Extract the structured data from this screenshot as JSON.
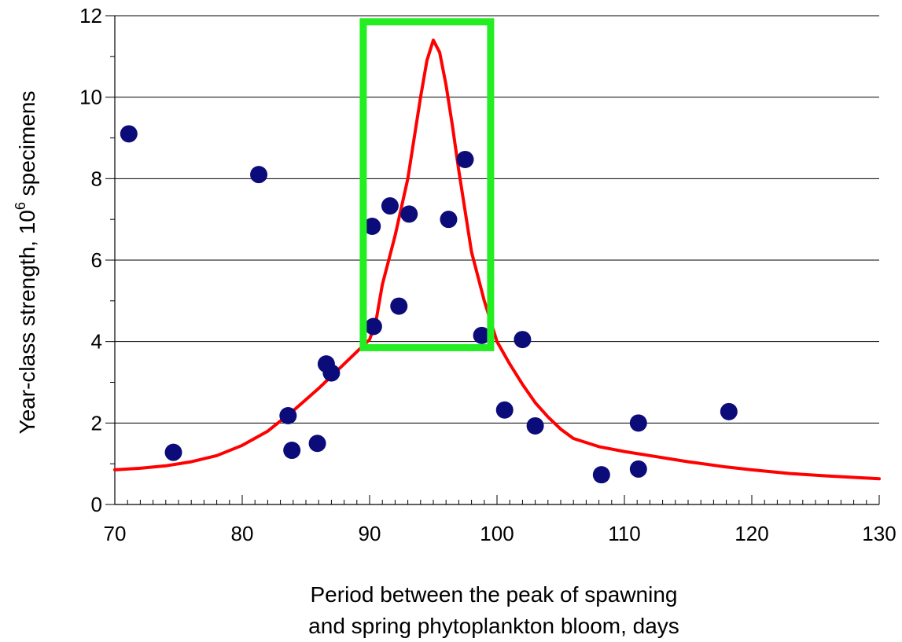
{
  "chart_data": {
    "type": "scatter",
    "xlabel_line1": "Period between the peak of spawning",
    "xlabel_line2": "and spring phytoplankton bloom, days",
    "ylabel_main": "Year-class strength, 10",
    "ylabel_sup": "6",
    "ylabel_tail": " specimens",
    "xlim": [
      70,
      130
    ],
    "ylim": [
      0,
      12
    ],
    "x_ticks": [
      70,
      80,
      90,
      100,
      110,
      120,
      130
    ],
    "y_ticks": [
      0,
      2,
      4,
      6,
      8,
      10,
      12
    ],
    "grid": "horizontal",
    "series": [
      {
        "type": "scatter",
        "color": "#0b0b7a",
        "points": [
          [
            71.1,
            9.1
          ],
          [
            74.6,
            1.28
          ],
          [
            81.3,
            8.1
          ],
          [
            83.6,
            2.18
          ],
          [
            83.9,
            1.33
          ],
          [
            85.9,
            1.5
          ],
          [
            86.6,
            3.45
          ],
          [
            87.0,
            3.23
          ],
          [
            90.2,
            6.83
          ],
          [
            90.3,
            4.37
          ],
          [
            91.6,
            7.33
          ],
          [
            92.3,
            4.87
          ],
          [
            93.1,
            7.13
          ],
          [
            96.2,
            7.0
          ],
          [
            97.5,
            8.47
          ],
          [
            98.8,
            4.15
          ],
          [
            100.6,
            2.32
          ],
          [
            102.0,
            4.05
          ],
          [
            103.0,
            1.93
          ],
          [
            108.2,
            0.73
          ],
          [
            111.1,
            2.0
          ],
          [
            111.1,
            0.87
          ],
          [
            118.2,
            2.28
          ]
        ]
      },
      {
        "type": "line",
        "color": "#ff0000",
        "points": [
          [
            70,
            0.85
          ],
          [
            72,
            0.89
          ],
          [
            74,
            0.95
          ],
          [
            76,
            1.05
          ],
          [
            78,
            1.2
          ],
          [
            80,
            1.45
          ],
          [
            82,
            1.8
          ],
          [
            84,
            2.3
          ],
          [
            86,
            2.85
          ],
          [
            88,
            3.45
          ],
          [
            89,
            3.75
          ],
          [
            90,
            4.05
          ],
          [
            90.5,
            4.5
          ],
          [
            91,
            5.4
          ],
          [
            92,
            6.6
          ],
          [
            93,
            8.0
          ],
          [
            93.5,
            9.0
          ],
          [
            94,
            10.0
          ],
          [
            94.5,
            10.9
          ],
          [
            95,
            11.4
          ],
          [
            95.5,
            11.1
          ],
          [
            96,
            10.3
          ],
          [
            96.5,
            9.3
          ],
          [
            97,
            8.2
          ],
          [
            97.5,
            7.2
          ],
          [
            98,
            6.2
          ],
          [
            99,
            5.0
          ],
          [
            100,
            4.0
          ],
          [
            101,
            3.45
          ],
          [
            102,
            2.95
          ],
          [
            103,
            2.5
          ],
          [
            104,
            2.15
          ],
          [
            105,
            1.85
          ],
          [
            106,
            1.62
          ],
          [
            108,
            1.42
          ],
          [
            110,
            1.3
          ],
          [
            112,
            1.2
          ],
          [
            115,
            1.05
          ],
          [
            118,
            0.92
          ],
          [
            120,
            0.85
          ],
          [
            123,
            0.76
          ],
          [
            126,
            0.7
          ],
          [
            130,
            0.63
          ]
        ]
      }
    ],
    "highlight_box": {
      "color": "#22ee22",
      "x": [
        89.5,
        99.5
      ],
      "y": [
        3.85,
        11.85
      ]
    }
  }
}
